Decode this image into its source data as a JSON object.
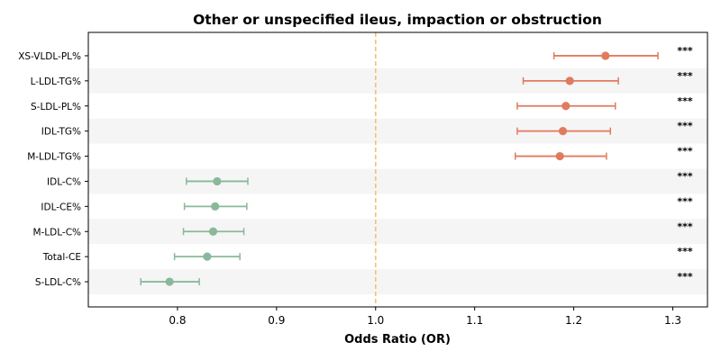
{
  "chart_data": {
    "type": "scatter",
    "subtype": "forest-plot",
    "title": "Other or unspecified ileus, impaction or obstruction",
    "xlabel": "Odds Ratio (OR)",
    "ylabel": "",
    "xlim": [
      0.71,
      1.335
    ],
    "xticks": [
      "0.8",
      "0.9",
      "1.0",
      "1.1",
      "1.2",
      "1.3"
    ],
    "reference_line": 1.0,
    "reference_line_color": "#f0c27b",
    "row_stripe_color": "#f5f5f5",
    "colors": {
      "increase": "#e07b5f",
      "decrease": "#8ab89a"
    },
    "points": [
      {
        "label": "XS-VLDL-PL%",
        "or": 1.232,
        "ci_low": 1.18,
        "ci_high": 1.285,
        "sig": "***",
        "group": "increase"
      },
      {
        "label": "L-LDL-TG%",
        "or": 1.196,
        "ci_low": 1.149,
        "ci_high": 1.245,
        "sig": "***",
        "group": "increase"
      },
      {
        "label": "S-LDL-PL%",
        "or": 1.192,
        "ci_low": 1.143,
        "ci_high": 1.242,
        "sig": "***",
        "group": "increase"
      },
      {
        "label": "IDL-TG%",
        "or": 1.189,
        "ci_low": 1.143,
        "ci_high": 1.237,
        "sig": "***",
        "group": "increase"
      },
      {
        "label": "M-LDL-TG%",
        "or": 1.186,
        "ci_low": 1.141,
        "ci_high": 1.233,
        "sig": "***",
        "group": "increase"
      },
      {
        "label": "IDL-C%",
        "or": 0.84,
        "ci_low": 0.809,
        "ci_high": 0.871,
        "sig": "***",
        "group": "decrease"
      },
      {
        "label": "IDL-CE%",
        "or": 0.838,
        "ci_low": 0.807,
        "ci_high": 0.87,
        "sig": "***",
        "group": "decrease"
      },
      {
        "label": "M-LDL-C%",
        "or": 0.836,
        "ci_low": 0.806,
        "ci_high": 0.867,
        "sig": "***",
        "group": "decrease"
      },
      {
        "label": "Total-CE",
        "or": 0.83,
        "ci_low": 0.797,
        "ci_high": 0.863,
        "sig": "***",
        "group": "decrease"
      },
      {
        "label": "S-LDL-C%",
        "or": 0.792,
        "ci_low": 0.763,
        "ci_high": 0.822,
        "sig": "***",
        "group": "decrease"
      }
    ]
  }
}
